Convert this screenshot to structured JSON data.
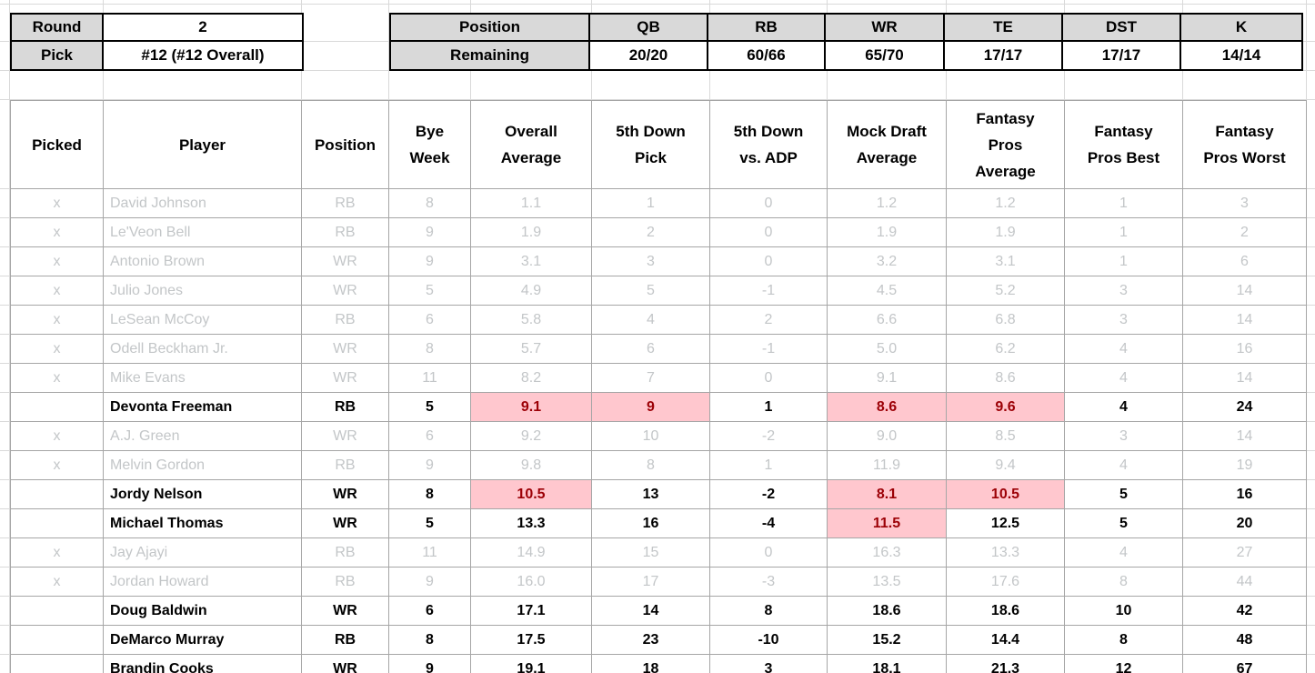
{
  "draft_info": {
    "round_label": "Round",
    "round_value": "2",
    "pick_label": "Pick",
    "pick_value": "#12 (#12 Overall)"
  },
  "position_remaining": {
    "position_label": "Position",
    "remaining_label": "Remaining",
    "columns": [
      {
        "label": "QB",
        "value": "20/20"
      },
      {
        "label": "RB",
        "value": "60/66"
      },
      {
        "label": "WR",
        "value": "65/70"
      },
      {
        "label": "TE",
        "value": "17/17"
      },
      {
        "label": "DST",
        "value": "17/17"
      },
      {
        "label": "K",
        "value": "14/14"
      }
    ]
  },
  "player_table": {
    "headers": [
      "Picked",
      "Player",
      "Position",
      "Bye\nWeek",
      "Overall\nAverage",
      "5th Down\nPick",
      "5th Down\nvs. ADP",
      "Mock Draft\nAverage",
      "Fantasy\nPros\nAverage",
      "Fantasy\nPros Best",
      "Fantasy\nPros Worst"
    ],
    "rows": [
      {
        "picked": "x",
        "player": "David Johnson",
        "position": "RB",
        "bye_week": "8",
        "overall_average": "1.1",
        "fifth_down_pick": "1",
        "fifth_down_vs_adp": "0",
        "mock_draft_average": "1.2",
        "fantasy_pros_average": "1.2",
        "fantasy_pros_best": "1",
        "fantasy_pros_worst": "3",
        "highlighted_cells": []
      },
      {
        "picked": "x",
        "player": "Le'Veon Bell",
        "position": "RB",
        "bye_week": "9",
        "overall_average": "1.9",
        "fifth_down_pick": "2",
        "fifth_down_vs_adp": "0",
        "mock_draft_average": "1.9",
        "fantasy_pros_average": "1.9",
        "fantasy_pros_best": "1",
        "fantasy_pros_worst": "2",
        "highlighted_cells": []
      },
      {
        "picked": "x",
        "player": "Antonio Brown",
        "position": "WR",
        "bye_week": "9",
        "overall_average": "3.1",
        "fifth_down_pick": "3",
        "fifth_down_vs_adp": "0",
        "mock_draft_average": "3.2",
        "fantasy_pros_average": "3.1",
        "fantasy_pros_best": "1",
        "fantasy_pros_worst": "6",
        "highlighted_cells": []
      },
      {
        "picked": "x",
        "player": "Julio Jones",
        "position": "WR",
        "bye_week": "5",
        "overall_average": "4.9",
        "fifth_down_pick": "5",
        "fifth_down_vs_adp": "-1",
        "mock_draft_average": "4.5",
        "fantasy_pros_average": "5.2",
        "fantasy_pros_best": "3",
        "fantasy_pros_worst": "14",
        "highlighted_cells": []
      },
      {
        "picked": "x",
        "player": "LeSean McCoy",
        "position": "RB",
        "bye_week": "6",
        "overall_average": "5.8",
        "fifth_down_pick": "4",
        "fifth_down_vs_adp": "2",
        "mock_draft_average": "6.6",
        "fantasy_pros_average": "6.8",
        "fantasy_pros_best": "3",
        "fantasy_pros_worst": "14",
        "highlighted_cells": []
      },
      {
        "picked": "x",
        "player": "Odell Beckham Jr.",
        "position": "WR",
        "bye_week": "8",
        "overall_average": "5.7",
        "fifth_down_pick": "6",
        "fifth_down_vs_adp": "-1",
        "mock_draft_average": "5.0",
        "fantasy_pros_average": "6.2",
        "fantasy_pros_best": "4",
        "fantasy_pros_worst": "16",
        "highlighted_cells": []
      },
      {
        "picked": "x",
        "player": "Mike Evans",
        "position": "WR",
        "bye_week": "11",
        "overall_average": "8.2",
        "fifth_down_pick": "7",
        "fifth_down_vs_adp": "0",
        "mock_draft_average": "9.1",
        "fantasy_pros_average": "8.6",
        "fantasy_pros_best": "4",
        "fantasy_pros_worst": "14",
        "highlighted_cells": []
      },
      {
        "picked": "",
        "player": "Devonta Freeman",
        "position": "RB",
        "bye_week": "5",
        "overall_average": "9.1",
        "fifth_down_pick": "9",
        "fifth_down_vs_adp": "1",
        "mock_draft_average": "8.6",
        "fantasy_pros_average": "9.6",
        "fantasy_pros_best": "4",
        "fantasy_pros_worst": "24",
        "highlighted_cells": [
          "overall_average",
          "fifth_down_pick",
          "mock_draft_average",
          "fantasy_pros_average"
        ]
      },
      {
        "picked": "x",
        "player": "A.J. Green",
        "position": "WR",
        "bye_week": "6",
        "overall_average": "9.2",
        "fifth_down_pick": "10",
        "fifth_down_vs_adp": "-2",
        "mock_draft_average": "9.0",
        "fantasy_pros_average": "8.5",
        "fantasy_pros_best": "3",
        "fantasy_pros_worst": "14",
        "highlighted_cells": []
      },
      {
        "picked": "x",
        "player": "Melvin Gordon",
        "position": "RB",
        "bye_week": "9",
        "overall_average": "9.8",
        "fifth_down_pick": "8",
        "fifth_down_vs_adp": "1",
        "mock_draft_average": "11.9",
        "fantasy_pros_average": "9.4",
        "fantasy_pros_best": "4",
        "fantasy_pros_worst": "19",
        "highlighted_cells": []
      },
      {
        "picked": "",
        "player": "Jordy Nelson",
        "position": "WR",
        "bye_week": "8",
        "overall_average": "10.5",
        "fifth_down_pick": "13",
        "fifth_down_vs_adp": "-2",
        "mock_draft_average": "8.1",
        "fantasy_pros_average": "10.5",
        "fantasy_pros_best": "5",
        "fantasy_pros_worst": "16",
        "highlighted_cells": [
          "overall_average",
          "mock_draft_average",
          "fantasy_pros_average"
        ]
      },
      {
        "picked": "",
        "player": "Michael Thomas",
        "position": "WR",
        "bye_week": "5",
        "overall_average": "13.3",
        "fifth_down_pick": "16",
        "fifth_down_vs_adp": "-4",
        "mock_draft_average": "11.5",
        "fantasy_pros_average": "12.5",
        "fantasy_pros_best": "5",
        "fantasy_pros_worst": "20",
        "highlighted_cells": [
          "mock_draft_average"
        ]
      },
      {
        "picked": "x",
        "player": "Jay Ajayi",
        "position": "RB",
        "bye_week": "11",
        "overall_average": "14.9",
        "fifth_down_pick": "15",
        "fifth_down_vs_adp": "0",
        "mock_draft_average": "16.3",
        "fantasy_pros_average": "13.3",
        "fantasy_pros_best": "4",
        "fantasy_pros_worst": "27",
        "highlighted_cells": []
      },
      {
        "picked": "x",
        "player": "Jordan Howard",
        "position": "RB",
        "bye_week": "9",
        "overall_average": "16.0",
        "fifth_down_pick": "17",
        "fifth_down_vs_adp": "-3",
        "mock_draft_average": "13.5",
        "fantasy_pros_average": "17.6",
        "fantasy_pros_best": "8",
        "fantasy_pros_worst": "44",
        "highlighted_cells": []
      },
      {
        "picked": "",
        "player": "Doug Baldwin",
        "position": "WR",
        "bye_week": "6",
        "overall_average": "17.1",
        "fifth_down_pick": "14",
        "fifth_down_vs_adp": "8",
        "mock_draft_average": "18.6",
        "fantasy_pros_average": "18.6",
        "fantasy_pros_best": "10",
        "fantasy_pros_worst": "42",
        "highlighted_cells": []
      },
      {
        "picked": "",
        "player": "DeMarco Murray",
        "position": "RB",
        "bye_week": "8",
        "overall_average": "17.5",
        "fifth_down_pick": "23",
        "fifth_down_vs_adp": "-10",
        "mock_draft_average": "15.2",
        "fantasy_pros_average": "14.4",
        "fantasy_pros_best": "8",
        "fantasy_pros_worst": "48",
        "highlighted_cells": []
      },
      {
        "picked": "",
        "player": "Brandin Cooks",
        "position": "WR",
        "bye_week": "9",
        "overall_average": "19.1",
        "fifth_down_pick": "18",
        "fifth_down_vs_adp": "3",
        "mock_draft_average": "18.1",
        "fantasy_pros_average": "21.3",
        "fantasy_pros_best": "12",
        "fantasy_pros_worst": "67",
        "highlighted_cells": []
      }
    ]
  },
  "colors": {
    "highlight_bg": "#ffc7ce",
    "highlight_text": "#9c0006",
    "picked_text": "#c3c6c8",
    "header_fill": "#d9d9d9",
    "table_border": "#a6a6a6",
    "gridline": "#d9d9d9"
  }
}
